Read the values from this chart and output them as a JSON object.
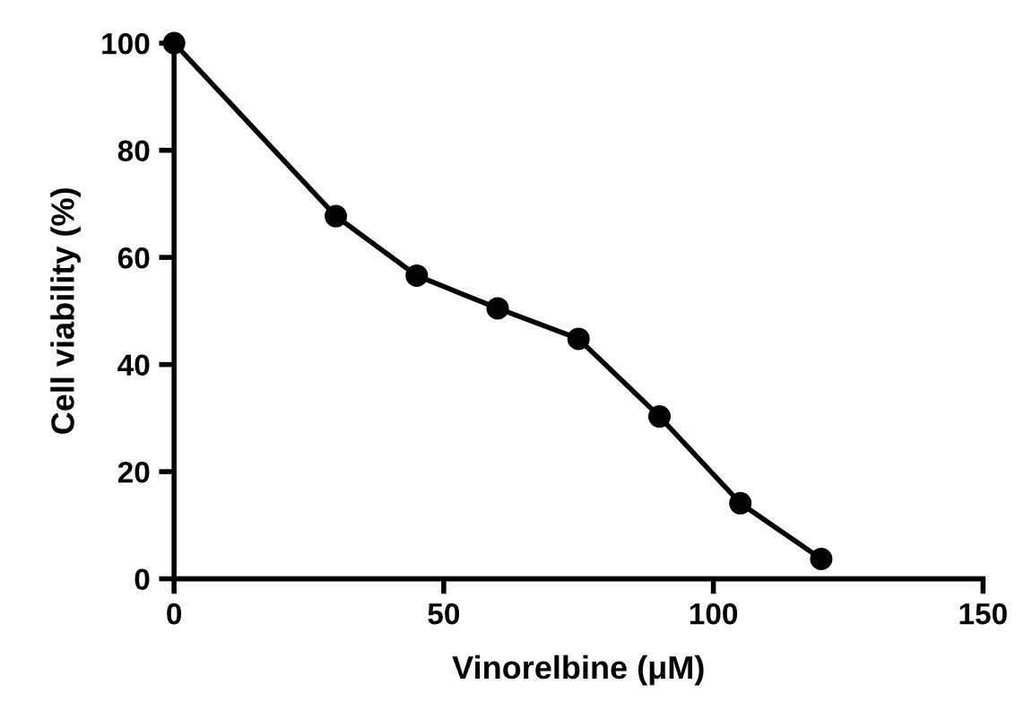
{
  "chart_data": {
    "type": "line",
    "xlabel": "Vinorelbine (μM)",
    "ylabel": "Cell viability (%)",
    "x": [
      0,
      30,
      45,
      60,
      75,
      90,
      105,
      120
    ],
    "series": [
      {
        "color": "#000000",
        "values": [
          100,
          67.7,
          56.6,
          50.5,
          44.8,
          30.3,
          14.1,
          3.7
        ]
      }
    ],
    "xlim": [
      0,
      150
    ],
    "xticks": [
      0,
      50,
      100,
      150
    ],
    "ylim": [
      0,
      100
    ],
    "yticks": [
      0,
      20,
      40,
      60,
      80,
      100
    ],
    "marker": "circle",
    "line_style": "solid",
    "grid": false
  }
}
